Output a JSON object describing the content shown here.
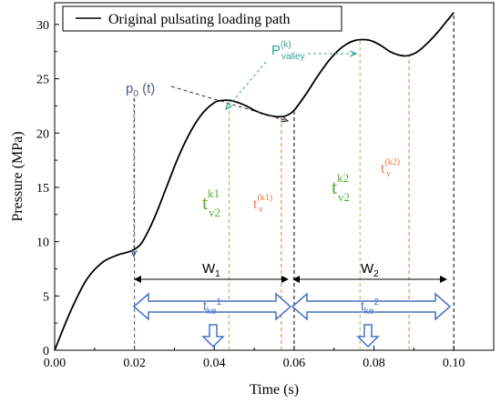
{
  "chart_data": {
    "type": "line",
    "xlabel": "Time (s)",
    "ylabel": "Pressure (MPa)",
    "xlim": [
      0,
      0.11
    ],
    "ylim": [
      0,
      32
    ],
    "x_ticks": [
      "0.00",
      "0.02",
      "0.04",
      "0.06",
      "0.08",
      "0.10"
    ],
    "x_tick_values": [
      0,
      0.02,
      0.04,
      0.06,
      0.08,
      0.1
    ],
    "y_ticks": [
      "0",
      "5",
      "10",
      "15",
      "20",
      "25",
      "30"
    ],
    "y_tick_values": [
      0,
      5,
      10,
      15,
      20,
      25,
      30
    ],
    "legend": {
      "position": "top-left",
      "label": "Original pulsating loading path"
    },
    "series": [
      {
        "name": "Original pulsating loading path",
        "color": "#000000",
        "x": [
          0,
          0.004,
          0.008,
          0.012,
          0.016,
          0.018,
          0.02,
          0.022,
          0.025,
          0.028,
          0.031,
          0.034,
          0.037,
          0.04,
          0.042,
          0.044,
          0.046,
          0.048,
          0.05,
          0.052,
          0.054,
          0.056,
          0.058,
          0.06,
          0.063,
          0.066,
          0.069,
          0.072,
          0.075,
          0.078,
          0.08,
          0.082,
          0.084,
          0.086,
          0.088,
          0.09,
          0.092,
          0.094,
          0.096,
          0.098,
          0.1
        ],
        "y": [
          0,
          3.6,
          6.5,
          8.1,
          8.8,
          9.0,
          9.3,
          10.0,
          12.2,
          15.0,
          17.8,
          20.1,
          21.8,
          22.8,
          23.0,
          23.0,
          22.8,
          22.5,
          22.1,
          21.8,
          21.6,
          21.5,
          21.6,
          22.1,
          23.6,
          25.3,
          26.8,
          27.9,
          28.5,
          28.6,
          28.4,
          28.0,
          27.5,
          27.2,
          27.1,
          27.3,
          27.8,
          28.5,
          29.3,
          30.2,
          31.1
        ]
      }
    ],
    "vlines": [
      {
        "x": 0.02,
        "y0": 0,
        "y1": 23.3,
        "color": "#4a5a8a"
      },
      {
        "x": 0.0437,
        "y0": 0,
        "y1": 22.8,
        "color": "#8cc63f"
      },
      {
        "x": 0.0568,
        "y0": 0,
        "y1": 21.4,
        "color": "#e87722"
      },
      {
        "x": 0.06,
        "y0": 0,
        "y1": 22.0,
        "color": "#000000"
      },
      {
        "x": 0.0765,
        "y0": 0,
        "y1": 28.6,
        "color": "#8cc63f"
      },
      {
        "x": 0.0888,
        "y0": 0,
        "y1": 27.1,
        "color": "#e87722"
      },
      {
        "x": 0.1,
        "y0": 0,
        "y1": 31.0,
        "color": "#000000"
      }
    ],
    "annotations": {
      "p0_label": "p",
      "p0_sub": "0",
      "p0_suffix": " (t)",
      "pvalley_main": "P",
      "pvalley_sup": "(k)",
      "pvalley_sub": "valley",
      "tv2k1_main": "t",
      "tv2k1_sup": "k1",
      "tv2k1_sub": "v2",
      "tvk1_main": "t",
      "tvk1_sup": "(k1)",
      "tvk1_sub": "v",
      "tv2k2_main": "t",
      "tv2k2_sup": "k2",
      "tv2k2_sub": "v2",
      "tvk2_main": "t",
      "tvk2_sup": "(k2)",
      "tvk2_sub": "v",
      "w1_main": "W",
      "w1_sub": "1",
      "w2_main": "W",
      "w2_sub": "2",
      "tke1_main": "t",
      "tke1_sub": "ke",
      "tke1_sup": "1",
      "tke2_main": "t",
      "tke2_sub": "ke",
      "tke2_sup": "2"
    },
    "colors": {
      "navy": "#4a5a8a",
      "green": "#58a92d",
      "orange": "#e07b39",
      "teal": "#2fa58c",
      "blue": "#4472c4"
    },
    "grid": false
  }
}
